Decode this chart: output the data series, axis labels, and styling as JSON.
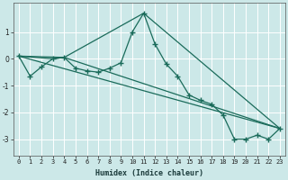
{
  "xlabel": "Humidex (Indice chaleur)",
  "ylabel": "",
  "background_color": "#cce8e8",
  "grid_color": "#ffffff",
  "line_color": "#1a6b5a",
  "xlim": [
    -0.5,
    23.5
  ],
  "ylim": [
    -3.6,
    2.1
  ],
  "yticks": [
    -3,
    -2,
    -1,
    0,
    1
  ],
  "xticks": [
    0,
    1,
    2,
    3,
    4,
    5,
    6,
    7,
    8,
    9,
    10,
    11,
    12,
    13,
    14,
    15,
    16,
    17,
    18,
    19,
    20,
    21,
    22,
    23
  ],
  "series1_x": [
    0,
    1,
    2,
    3,
    4,
    5,
    6,
    7,
    8,
    9,
    10,
    11,
    12,
    13,
    14,
    15,
    16,
    17,
    18,
    19,
    20,
    21,
    22,
    23
  ],
  "series1_y": [
    0.1,
    -0.65,
    -0.3,
    0.0,
    0.05,
    -0.35,
    -0.45,
    -0.5,
    -0.35,
    -0.15,
    1.0,
    1.7,
    0.55,
    -0.2,
    -0.65,
    -1.35,
    -1.55,
    -1.7,
    -2.1,
    -3.0,
    -3.0,
    -2.85,
    -3.0,
    -2.6
  ],
  "series2_x": [
    0,
    3,
    4,
    11,
    23
  ],
  "series2_y": [
    0.1,
    0.0,
    0.05,
    1.7,
    -2.6
  ],
  "series3_x": [
    0,
    23
  ],
  "series3_y": [
    0.1,
    -2.6
  ],
  "series4_x": [
    0,
    4,
    23
  ],
  "series4_y": [
    0.1,
    0.05,
    -2.6
  ]
}
